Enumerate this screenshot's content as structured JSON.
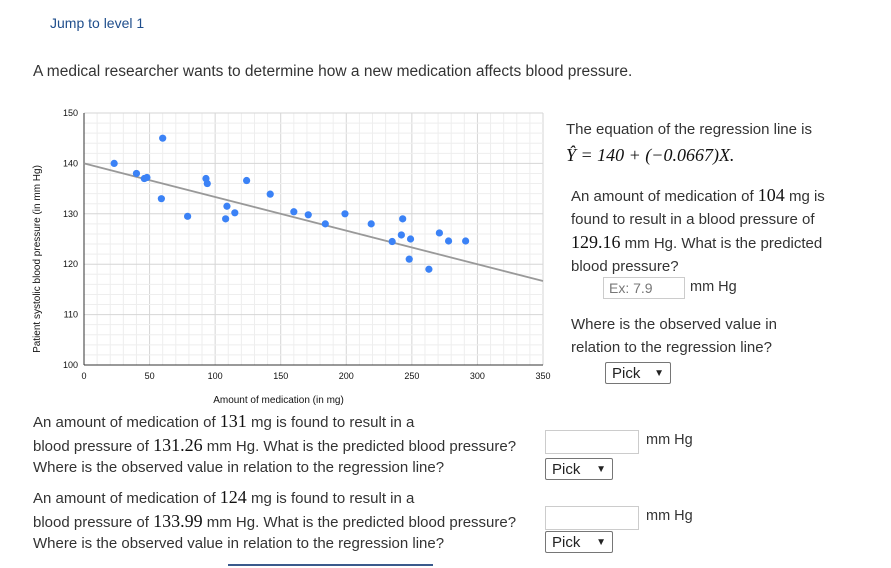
{
  "header": {
    "jump_link": "Jump to level 1"
  },
  "intro": "A medical researcher wants to determine how a new medication affects blood pressure.",
  "chart_data": {
    "type": "scatter",
    "title": "",
    "xlabel": "Amount of medication (in mg)",
    "ylabel": "Patient systolic blood pressure (in mm Hg)",
    "xlim": [
      0,
      350
    ],
    "ylim": [
      100,
      150
    ],
    "x_ticks": [
      "0",
      "50",
      "100",
      "150",
      "200",
      "250",
      "300",
      "350"
    ],
    "y_ticks": [
      "100",
      "110",
      "120",
      "130",
      "140",
      "150"
    ],
    "grid": true,
    "point_color": "#3b82f6",
    "line_color": "#999999",
    "regression": {
      "intercept": 140,
      "slope": -0.0667,
      "x_range": [
        0,
        350
      ]
    },
    "points": [
      {
        "x": 23,
        "y": 140
      },
      {
        "x": 40,
        "y": 138
      },
      {
        "x": 46,
        "y": 137
      },
      {
        "x": 48,
        "y": 137.2
      },
      {
        "x": 59,
        "y": 133
      },
      {
        "x": 60,
        "y": 145
      },
      {
        "x": 79,
        "y": 129.5
      },
      {
        "x": 93,
        "y": 137
      },
      {
        "x": 94,
        "y": 136
      },
      {
        "x": 108,
        "y": 129
      },
      {
        "x": 109,
        "y": 131.5
      },
      {
        "x": 115,
        "y": 130.2
      },
      {
        "x": 124,
        "y": 136.6
      },
      {
        "x": 142,
        "y": 133.9
      },
      {
        "x": 160,
        "y": 130.4
      },
      {
        "x": 171,
        "y": 129.8
      },
      {
        "x": 184,
        "y": 128
      },
      {
        "x": 199,
        "y": 130
      },
      {
        "x": 219,
        "y": 128
      },
      {
        "x": 235,
        "y": 124.5
      },
      {
        "x": 242,
        "y": 125.8
      },
      {
        "x": 243,
        "y": 129
      },
      {
        "x": 249,
        "y": 125
      },
      {
        "x": 248,
        "y": 121
      },
      {
        "x": 263,
        "y": 119
      },
      {
        "x": 271,
        "y": 126.2
      },
      {
        "x": 278,
        "y": 124.6
      },
      {
        "x": 291,
        "y": 124.6
      }
    ]
  },
  "side_panel": {
    "equation_intro": "The equation of the regression line is",
    "equation": "Ŷ = 140 + (−0.0667)X.",
    "q1_part1": "An amount of medication of ",
    "q1_amount": "104",
    "q1_part2": " mg is found to result in a blood pressure of ",
    "q1_bp": "129.16",
    "q1_part3": " mm Hg. What is the predicted blood pressure?",
    "q1_input_placeholder": "Ex: 7.9",
    "q1_unit": "mm Hg",
    "q1_where": "Where is the observed value in relation to the regression line?",
    "q1_select": "Pick"
  },
  "bottom": {
    "q2_part1": "An amount of medication of ",
    "q2_amount": "131",
    "q2_part2": " mg is found to result in a",
    "q2_line2a": "blood pressure of ",
    "q2_bp": "131.26",
    "q2_line2b": " mm Hg. What is the predicted blood pressure?",
    "q2_unit": "mm Hg",
    "q2_where": "Where is the observed value in relation to the regression line?",
    "q2_select": "Pick",
    "q3_part1": "An amount of medication of ",
    "q3_amount": "124",
    "q3_part2": " mg is found to result in a",
    "q3_line2a": "blood pressure of ",
    "q3_bp": "133.99",
    "q3_line2b": " mm Hg. What is the predicted blood pressure?",
    "q3_unit": "mm Hg",
    "q3_where": "Where is the observed value in relation to the regression line?",
    "q3_select": "Pick"
  }
}
